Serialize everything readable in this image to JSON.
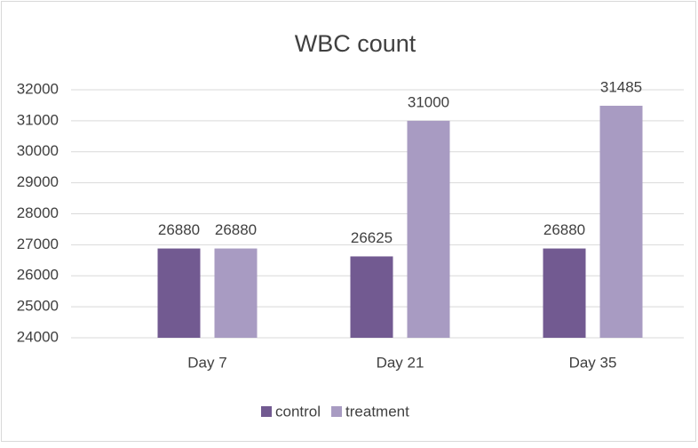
{
  "chart_data": {
    "type": "bar",
    "title": "WBC count",
    "categories": [
      "Day 7",
      "Day 21",
      "Day 35"
    ],
    "series": [
      {
        "name": "control",
        "color": "#725a91",
        "values": [
          26880,
          26625,
          26880
        ]
      },
      {
        "name": "treatment",
        "color": "#a89bc2",
        "values": [
          26880,
          31000,
          31485
        ]
      }
    ],
    "ylim": [
      24000,
      32000
    ],
    "yticks": [
      24000,
      25000,
      26000,
      27000,
      28000,
      29000,
      30000,
      31000,
      32000
    ],
    "grid": true,
    "legend": "bottom"
  }
}
